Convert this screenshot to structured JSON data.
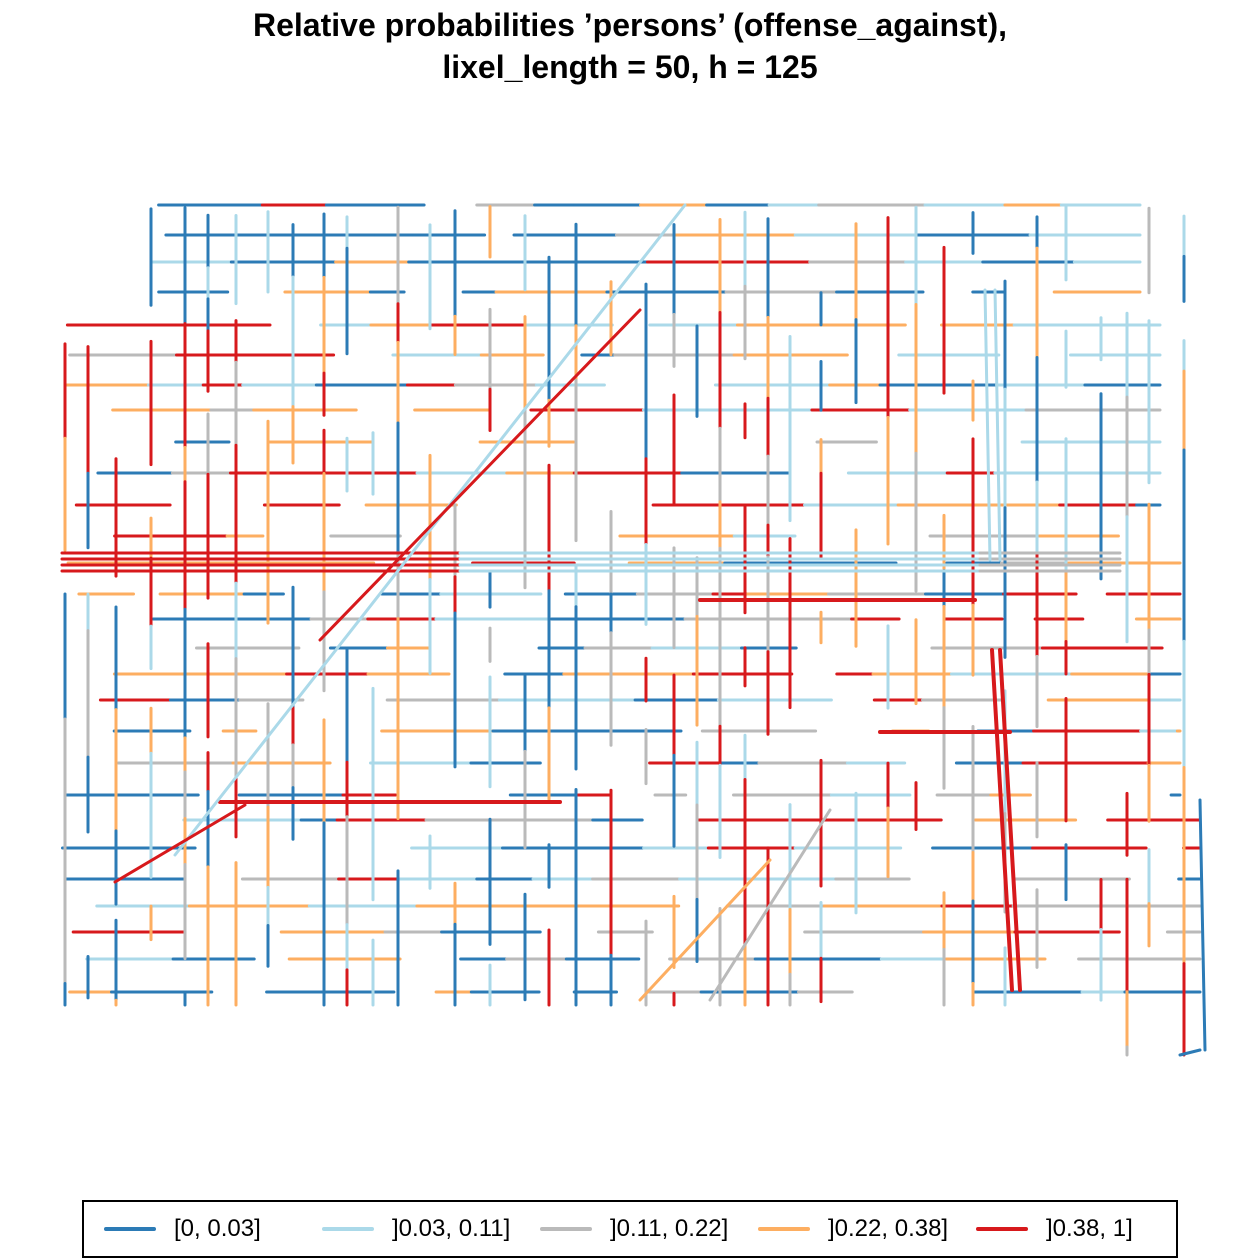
{
  "title": {
    "line1": "Relative probabilities ’persons’ (offense_against),",
    "line2": "lixel_length = 50, h = 125"
  },
  "colors": {
    "class1": "#2c7bb6",
    "class2": "#abd9e9",
    "class3": "#bababa",
    "class4": "#fdae61",
    "class5": "#d7191c"
  },
  "legend": {
    "items": [
      {
        "label": "[0, 0.03]",
        "color": "#2c7bb6"
      },
      {
        "label": "]0.03, 0.11]",
        "color": "#abd9e9"
      },
      {
        "label": "]0.11, 0.22]",
        "color": "#bababa"
      },
      {
        "label": "]0.22, 0.38]",
        "color": "#fdae61"
      },
      {
        "label": "]0.38, 1]",
        "color": "#d7191c"
      }
    ]
  }
}
